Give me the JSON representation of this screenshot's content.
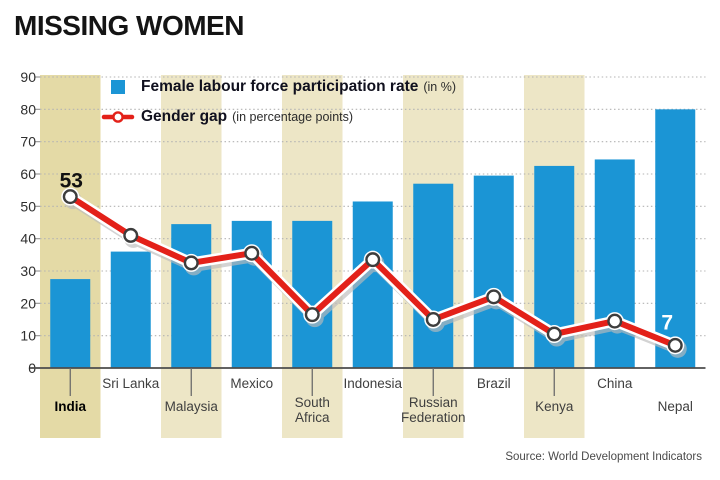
{
  "header": {
    "title": "MISSING WOMEN"
  },
  "legend": {
    "bar": {
      "label": "Female labour force participation rate",
      "suffix": "(in %)"
    },
    "line": {
      "label": "Gender gap",
      "suffix": "(in percentage points)"
    }
  },
  "source": "Source: World Development Indicators",
  "chart_data": {
    "type": "combo",
    "categories": [
      "India",
      "Sri Lanka",
      "Malaysia",
      "Mexico",
      "South Africa",
      "Indonesia",
      "Russian Federation",
      "Brazil",
      "Kenya",
      "China",
      "Nepal"
    ],
    "series": [
      {
        "name": "Female labour force participation rate",
        "type": "bar",
        "unit": "%",
        "values": [
          27.5,
          36,
          44.5,
          45.5,
          45.5,
          51.5,
          57,
          59.5,
          62.5,
          64.5,
          80
        ]
      },
      {
        "name": "Gender gap",
        "type": "line",
        "unit": "percentage points",
        "values": [
          53,
          41,
          32.5,
          35.5,
          16.5,
          33.5,
          15,
          22,
          10.5,
          14.5,
          7
        ]
      }
    ],
    "ylim": [
      0,
      90
    ],
    "yticks": [
      0,
      10,
      20,
      30,
      40,
      50,
      60,
      70,
      80,
      90
    ],
    "grid": "dotted-horizontal",
    "legend_position": "top-left-inside",
    "highlighted_categories": [
      "India",
      "Malaysia",
      "South Africa",
      "Russian Federation",
      "Kenya"
    ],
    "emphasized_category": "India",
    "annotations": [
      {
        "category": "India",
        "value": 53,
        "text": "53",
        "color": "#111111"
      },
      {
        "category": "Nepal",
        "value": 7,
        "text": "7",
        "color": "#ffffff"
      }
    ],
    "colors": {
      "bar": "#1b95d5",
      "line": "#e32119",
      "line_casing": "#ffffff",
      "shadow": "#bcbcbc",
      "marker_fill": "#ffffff",
      "marker_stroke": "#3d3d3d",
      "highlight_india": "#e4daa6",
      "highlight": "#ede6c6",
      "grid": "#b3b3b3",
      "axis": "#4c4c4c",
      "category_label": "#3f3f3f",
      "tick_label": "#2e2e2e"
    }
  }
}
